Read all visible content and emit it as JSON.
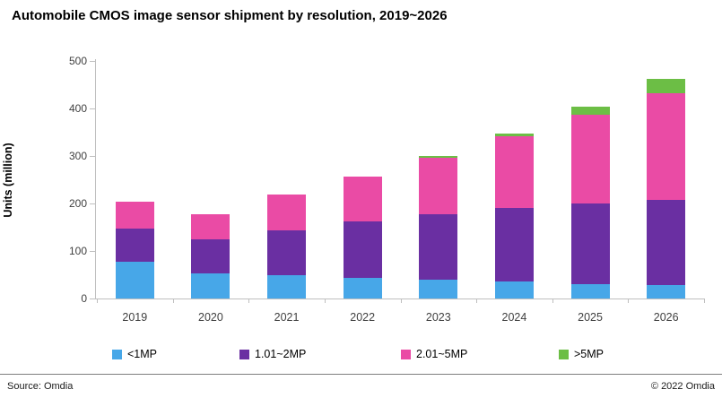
{
  "title": "Automobile CMOS image sensor shipment by resolution, 2019~2026",
  "footer": {
    "source": "Source: Omdia",
    "copyright": "© 2022 Omdia"
  },
  "colors": {
    "series_lt1mp": "#47a7e8",
    "series_1_2mp": "#6a2fa2",
    "series_2_5mp": "#ea4ba5",
    "series_gt5mp": "#6cbe45",
    "axis": "#bfbfbf"
  },
  "chart_data": {
    "type": "bar",
    "stacked": true,
    "title": "Automobile CMOS image sensor shipment by resolution, 2019~2026",
    "xlabel": "",
    "ylabel": "Units (million)",
    "ylim": [
      0,
      500
    ],
    "yticks": [
      0,
      100,
      200,
      300,
      400,
      500
    ],
    "grid": false,
    "legend_position": "bottom",
    "categories": [
      "2019",
      "2020",
      "2021",
      "2022",
      "2023",
      "2024",
      "2025",
      "2026"
    ],
    "series": [
      {
        "name": "<1MP",
        "color": "#47a7e8",
        "values": [
          77,
          52,
          49,
          44,
          39,
          35,
          31,
          29
        ]
      },
      {
        "name": "1.01~2MP",
        "color": "#6a2fa2",
        "values": [
          71,
          72,
          95,
          119,
          139,
          155,
          169,
          179
        ]
      },
      {
        "name": "2.01~5MP",
        "color": "#ea4ba5",
        "values": [
          55,
          54,
          75,
          94,
          119,
          152,
          187,
          225
        ]
      },
      {
        "name": ">5MP",
        "color": "#6cbe45",
        "values": [
          0,
          0,
          0,
          0,
          3,
          6,
          16,
          29
        ]
      }
    ],
    "totals": [
      203,
      178,
      219,
      257,
      300,
      348,
      403,
      462
    ]
  }
}
